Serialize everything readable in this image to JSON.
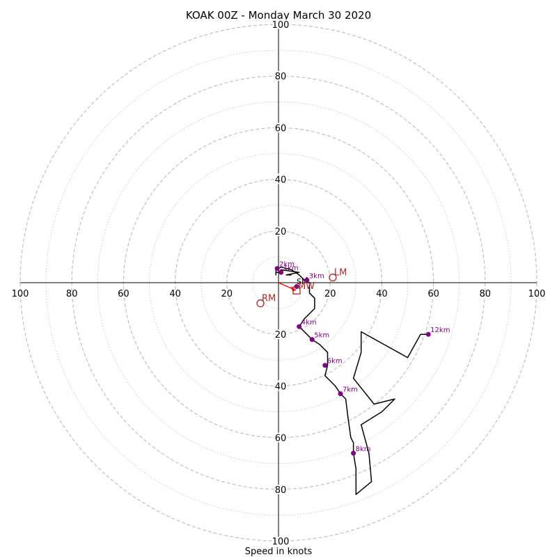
{
  "chart_data": {
    "type": "line",
    "title": "KOAK 00Z - Monday March 30 2020",
    "xlabel": "Speed in knots",
    "ylabel": "",
    "xlim": [
      -100,
      100
    ],
    "ylim": [
      -100,
      100
    ],
    "ring_step": 10,
    "labeled_rings": [
      20,
      40,
      60,
      80,
      100
    ],
    "x_tick_labels": [
      {
        "v": -100,
        "label": "100"
      },
      {
        "v": -80,
        "label": "80"
      },
      {
        "v": -60,
        "label": "60"
      },
      {
        "v": -40,
        "label": "40"
      },
      {
        "v": -20,
        "label": "20"
      },
      {
        "v": 20,
        "label": "20"
      },
      {
        "v": 40,
        "label": "40"
      },
      {
        "v": 60,
        "label": "60"
      },
      {
        "v": 80,
        "label": "80"
      },
      {
        "v": 100,
        "label": "100"
      }
    ],
    "y_tick_labels": [
      {
        "v": 100,
        "label": "100"
      },
      {
        "v": 80,
        "label": "80"
      },
      {
        "v": 60,
        "label": "60"
      },
      {
        "v": 40,
        "label": "40"
      },
      {
        "v": 20,
        "label": "20"
      },
      {
        "v": -20,
        "label": "20"
      },
      {
        "v": -40,
        "label": "40"
      },
      {
        "v": -60,
        "label": "60"
      },
      {
        "v": -80,
        "label": "80"
      },
      {
        "v": -100,
        "label": "100"
      }
    ],
    "hodograph": [
      [
        5,
        3
      ],
      [
        3,
        3
      ],
      [
        8,
        4
      ],
      [
        1,
        5
      ],
      [
        0,
        4
      ],
      [
        -1,
        4
      ],
      [
        -1,
        3
      ],
      [
        -1,
        5
      ],
      [
        1,
        6
      ],
      [
        5,
        5
      ],
      [
        8,
        3
      ],
      [
        10,
        1
      ],
      [
        11,
        1
      ],
      [
        11,
        2
      ],
      [
        10,
        1
      ],
      [
        12,
        0
      ],
      [
        12,
        -4
      ],
      [
        14,
        -6
      ],
      [
        14,
        -10
      ],
      [
        12,
        -12
      ],
      [
        10,
        -14
      ],
      [
        8,
        -17
      ],
      [
        11,
        -20
      ],
      [
        13,
        -22
      ],
      [
        16,
        -24
      ],
      [
        19,
        -27
      ],
      [
        19,
        -32
      ],
      [
        18,
        -36
      ],
      [
        20,
        -38
      ],
      [
        22,
        -40
      ],
      [
        24,
        -43
      ],
      [
        26,
        -45
      ],
      [
        27,
        -53
      ],
      [
        28,
        -60
      ],
      [
        29,
        -62
      ],
      [
        29,
        -66
      ],
      [
        30,
        -72
      ],
      [
        30,
        -82
      ],
      [
        36,
        -77
      ],
      [
        35,
        -66
      ],
      [
        32,
        -55
      ],
      [
        40,
        -50
      ],
      [
        45,
        -45
      ],
      [
        37,
        -47
      ],
      [
        29,
        -37
      ],
      [
        32,
        -27
      ],
      [
        32,
        -19
      ],
      [
        50,
        -29
      ],
      [
        55,
        -20
      ],
      [
        58,
        -20
      ]
    ],
    "height_markers": [
      {
        "label": "2km",
        "x": -0.5,
        "y": 5.5
      },
      {
        "label": "1km",
        "x": 1,
        "y": 4
      },
      {
        "label": "3km",
        "x": 11,
        "y": 1
      },
      {
        "label": "4km",
        "x": 8,
        "y": -17
      },
      {
        "label": "5km",
        "x": 13,
        "y": -22
      },
      {
        "label": "6km",
        "x": 18,
        "y": -32
      },
      {
        "label": "7km",
        "x": 24,
        "y": -43
      },
      {
        "label": "8km",
        "x": 29,
        "y": -66
      },
      {
        "label": "12km",
        "x": 58,
        "y": -20
      }
    ],
    "surface_label": {
      "label": "SM",
      "x": 7,
      "y": -0.5
    },
    "surface_point": {
      "x": 7,
      "y": -1.5
    },
    "mean_wind": {
      "label": "MW",
      "x": 7,
      "y": -3,
      "arrow_from": [
        0,
        0
      ]
    },
    "storm_motions": [
      {
        "label": "LM",
        "x": 21,
        "y": 2
      },
      {
        "label": "RM",
        "x": -7,
        "y": -8
      }
    ],
    "colors": {
      "hodograph": "#000000",
      "height_marker": "#800080",
      "storm_motion": "#a52a2a",
      "mean_wind": "#ff0000",
      "grid": "#bbbbbb"
    }
  }
}
